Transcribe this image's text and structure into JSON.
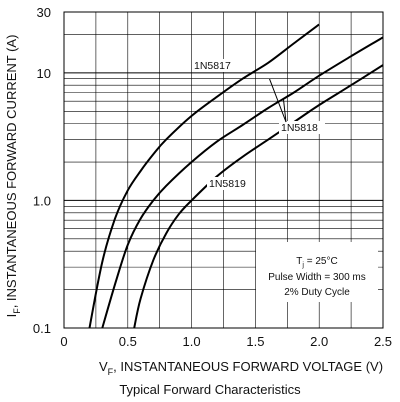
{
  "chart_data": {
    "type": "line",
    "title": "Typical Forward Characteristics",
    "xlabel": "V",
    "xlabel_sub": "F",
    "xlabel_rest": ", INSTANTANEOUS FORWARD VOLTAGE (V)",
    "ylabel": "I",
    "ylabel_sub": "F",
    "ylabel_rest": ", INSTANTANEOUS FORWARD CURRENT (A)",
    "xlim": [
      0,
      2.5
    ],
    "ylim": [
      0.1,
      30
    ],
    "yscale": "log",
    "grid": true,
    "x_ticks": [
      "0",
      "0.5",
      "1.0",
      "1.5",
      "2.0",
      "2.5"
    ],
    "x_tick_values": [
      0,
      0.5,
      1.0,
      1.5,
      2.0,
      2.5
    ],
    "y_ticks": [
      "0.1",
      "1.0",
      "10",
      "30"
    ],
    "y_tick_values": [
      0.1,
      1.0,
      10,
      30
    ],
    "series": [
      {
        "name": "1N5817",
        "x": [
          0.2,
          0.3,
          0.4,
          0.5,
          0.6,
          0.7,
          0.8,
          1.0,
          1.2,
          1.4,
          1.6,
          1.8,
          2.0
        ],
        "y": [
          0.1,
          0.33,
          0.72,
          1.2,
          1.7,
          2.3,
          3.0,
          4.6,
          6.5,
          9.0,
          12,
          17,
          24
        ]
      },
      {
        "name": "1N5818",
        "x": [
          0.3,
          0.4,
          0.5,
          0.6,
          0.7,
          0.8,
          1.0,
          1.2,
          1.4,
          1.6,
          1.8,
          2.0,
          2.25,
          2.5
        ],
        "y": [
          0.1,
          0.22,
          0.45,
          0.72,
          1.0,
          1.3,
          2.0,
          2.9,
          3.9,
          5.3,
          7.0,
          9.5,
          13.5,
          19
        ]
      },
      {
        "name": "1N5819",
        "x": [
          0.55,
          0.6,
          0.7,
          0.8,
          0.9,
          1.0,
          1.2,
          1.4,
          1.6,
          1.8,
          2.0,
          2.25,
          2.5
        ],
        "y": [
          0.1,
          0.17,
          0.34,
          0.55,
          0.78,
          1.0,
          1.55,
          2.2,
          3.0,
          4.1,
          5.6,
          8.0,
          11.5
        ]
      }
    ],
    "annotations": [
      {
        "id": "tj",
        "text_main": "T",
        "text_sub": "j",
        "text_rest": " = 25°C"
      },
      {
        "id": "pw",
        "text": "Pulse Width = 300 ms"
      },
      {
        "id": "dc",
        "text": "2% Duty Cycle"
      }
    ],
    "line_color": "#000000",
    "grid_color": "#000000",
    "background": "#ffffff"
  }
}
